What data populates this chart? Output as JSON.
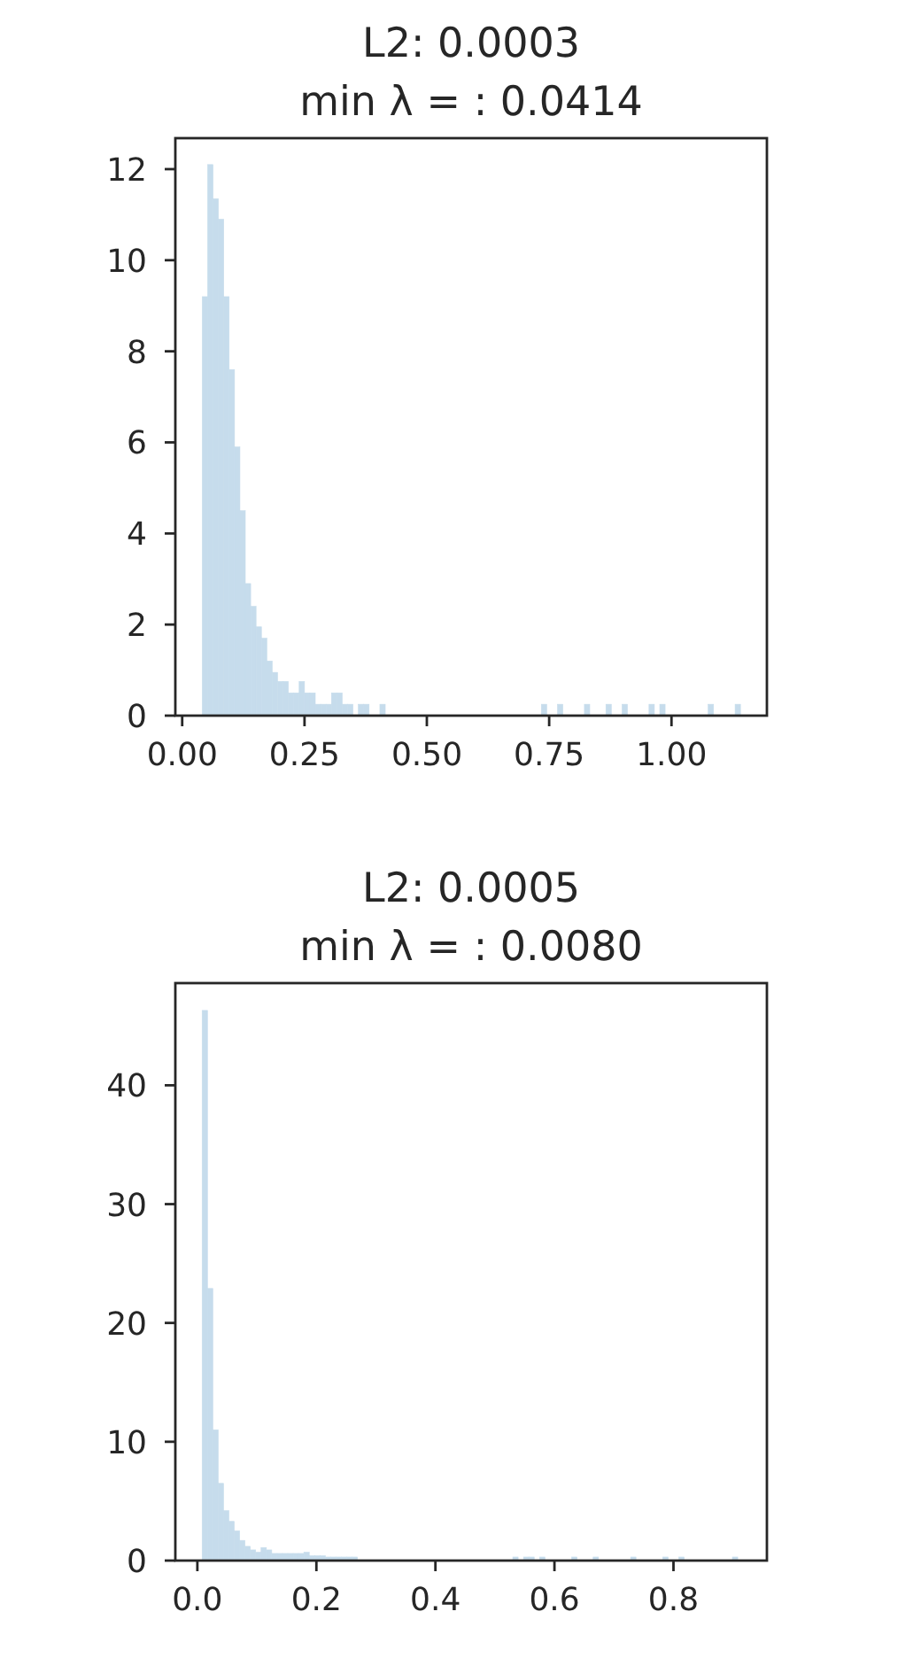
{
  "chart_data": [
    {
      "type": "histogram",
      "title": "L2: 0.0003",
      "subtitle": "min λ = : 0.0414",
      "color": "#c6dcec",
      "bins": [
        0.041,
        0.052,
        0.063,
        0.074,
        0.085,
        0.096,
        0.107,
        0.118,
        0.129,
        0.14,
        0.151,
        0.162,
        0.173,
        0.184,
        0.195,
        0.206,
        0.217,
        0.228,
        0.239,
        0.25,
        0.261,
        0.272,
        0.283,
        0.294,
        0.305,
        0.316,
        0.327,
        0.338,
        0.349,
        0.36,
        0.371,
        0.382,
        0.393,
        0.404,
        0.415,
        0.426,
        0.437,
        0.448,
        0.459,
        0.47,
        0.481,
        0.492,
        0.503,
        0.514,
        0.525,
        0.536,
        0.547,
        0.558,
        0.569,
        0.58,
        0.591,
        0.602,
        0.613,
        0.624,
        0.635,
        0.646,
        0.657,
        0.668,
        0.679,
        0.69,
        0.701,
        0.712,
        0.723,
        0.734,
        0.745,
        0.756,
        0.767,
        0.778,
        0.789,
        0.8,
        0.811,
        0.822,
        0.833,
        0.844,
        0.855,
        0.866,
        0.877,
        0.888,
        0.899,
        0.91,
        0.921,
        0.932,
        0.943,
        0.954,
        0.965,
        0.976,
        0.987,
        0.998,
        1.009,
        1.02,
        1.031,
        1.042,
        1.053,
        1.064,
        1.075,
        1.086,
        1.097,
        1.108,
        1.119,
        1.13,
        1.141
      ],
      "values": [
        9.2,
        12.1,
        11.35,
        10.9,
        9.2,
        7.6,
        5.9,
        4.5,
        2.9,
        2.4,
        1.95,
        1.7,
        1.2,
        0.95,
        0.75,
        0.75,
        0.5,
        0.5,
        0.75,
        0.5,
        0.5,
        0.25,
        0.25,
        0.25,
        0.5,
        0.5,
        0.25,
        0.25,
        0,
        0.25,
        0.25,
        0,
        0,
        0.25,
        0,
        0,
        0,
        0,
        0,
        0,
        0,
        0,
        0,
        0,
        0,
        0,
        0,
        0,
        0,
        0,
        0,
        0,
        0,
        0,
        0,
        0,
        0,
        0,
        0,
        0,
        0,
        0,
        0,
        0.25,
        0,
        0,
        0.25,
        0,
        0,
        0,
        0,
        0.25,
        0,
        0,
        0,
        0.25,
        0,
        0,
        0.25,
        0,
        0,
        0,
        0,
        0.25,
        0,
        0.25,
        0,
        0,
        0,
        0,
        0,
        0,
        0,
        0,
        0.25,
        0,
        0,
        0,
        0,
        0.25
      ],
      "xlim": [
        -0.014,
        1.195
      ],
      "ylim": [
        0,
        12.68
      ],
      "xticks": [
        {
          "value": 0,
          "label": "0.00"
        },
        0.25,
        {
          "value": 0.5,
          "label": "0.50"
        },
        0.75,
        {
          "value": 1,
          "label": "1.00"
        }
      ],
      "yticks": [
        0,
        2,
        4,
        6,
        8,
        10,
        12
      ]
    },
    {
      "type": "histogram",
      "title": "L2: 0.0005",
      "subtitle": "min λ = : 0.0080",
      "color": "#c6dcec",
      "bins": [
        0.008,
        0.017,
        0.026,
        0.035,
        0.044,
        0.053,
        0.062,
        0.071,
        0.08,
        0.089,
        0.098,
        0.107,
        0.116,
        0.125,
        0.134,
        0.143,
        0.152,
        0.161,
        0.17,
        0.179,
        0.188,
        0.197,
        0.206,
        0.215,
        0.224,
        0.233,
        0.242,
        0.251,
        0.26,
        0.269,
        0.278,
        0.287,
        0.296,
        0.305,
        0.314,
        0.323,
        0.332,
        0.341,
        0.35,
        0.359,
        0.368,
        0.377,
        0.386,
        0.395,
        0.404,
        0.413,
        0.422,
        0.431,
        0.44,
        0.449,
        0.458,
        0.467,
        0.476,
        0.485,
        0.494,
        0.503,
        0.512,
        0.521,
        0.53,
        0.539,
        0.548,
        0.557,
        0.566,
        0.575,
        0.584,
        0.593,
        0.602,
        0.611,
        0.62,
        0.629,
        0.638,
        0.647,
        0.656,
        0.665,
        0.674,
        0.683,
        0.692,
        0.701,
        0.71,
        0.719,
        0.728,
        0.737,
        0.746,
        0.755,
        0.764,
        0.773,
        0.782,
        0.791,
        0.8,
        0.809,
        0.818,
        0.827,
        0.836,
        0.845,
        0.854,
        0.863,
        0.872,
        0.881,
        0.89,
        0.899,
        0.908
      ],
      "values": [
        46.3,
        22.9,
        11,
        6.5,
        4.2,
        3.3,
        2.5,
        1.7,
        1.2,
        0.9,
        0.7,
        1.1,
        0.9,
        0.6,
        0.6,
        0.6,
        0.6,
        0.6,
        0.6,
        0.7,
        0.4,
        0.4,
        0.4,
        0.3,
        0.3,
        0.3,
        0.3,
        0.3,
        0.3,
        0,
        0,
        0,
        0,
        0,
        0,
        0,
        0,
        0,
        0,
        0,
        0,
        0,
        0,
        0,
        0,
        0,
        0,
        0,
        0,
        0,
        0,
        0,
        0,
        0,
        0,
        0,
        0,
        0,
        0.3,
        0,
        0.3,
        0.3,
        0,
        0.3,
        0,
        0,
        0,
        0,
        0,
        0.3,
        0,
        0,
        0,
        0.3,
        0,
        0,
        0,
        0,
        0,
        0,
        0.3,
        0,
        0,
        0,
        0,
        0,
        0.3,
        0,
        0,
        0.3,
        0,
        0,
        0,
        0,
        0,
        0,
        0,
        0,
        0,
        0.3
      ],
      "xlim": [
        -0.037,
        0.957
      ],
      "ylim": [
        0,
        48.6
      ],
      "xticks": [
        {
          "value": 0,
          "label": "0.0"
        },
        0.2,
        0.4,
        0.6,
        0.8
      ],
      "yticks": [
        0,
        10,
        20,
        30,
        40
      ]
    }
  ]
}
